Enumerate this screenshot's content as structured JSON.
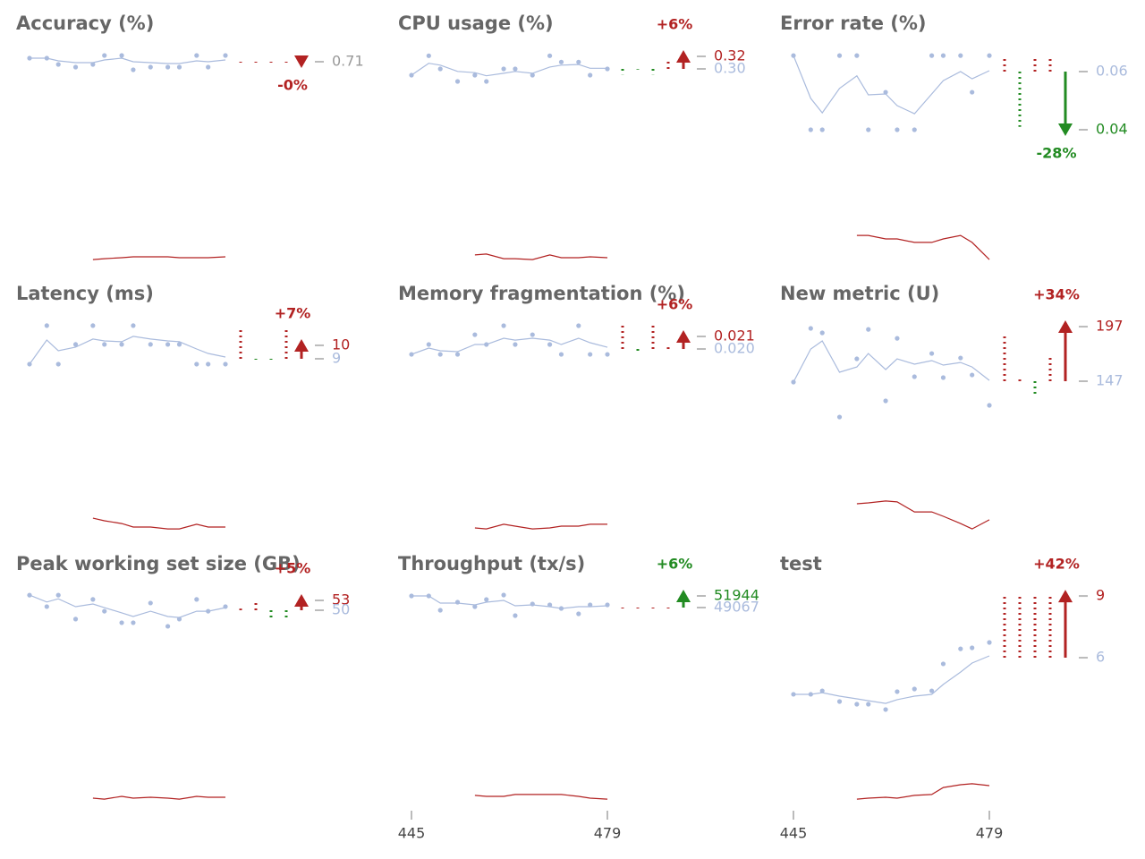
{
  "chart_data": [
    {
      "type": "line",
      "title": "Accuracy (%)",
      "x": [
        445,
        448,
        450,
        453,
        456,
        458,
        461,
        463,
        466,
        469,
        471,
        474,
        476,
        479
      ],
      "series": [
        {
          "color": "#aabbdd",
          "style": "points",
          "values": [
            0.714,
            0.714,
            0.707,
            0.704,
            0.707,
            0.717,
            0.717,
            0.701,
            0.704,
            0.704,
            0.704,
            0.717,
            0.704,
            0.717
          ]
        },
        {
          "color": "#aabbdd",
          "style": "line",
          "values": [
            0.714,
            0.714,
            0.711,
            0.709,
            0.709,
            0.712,
            0.714,
            0.71,
            0.709,
            0.708,
            0.708,
            0.711,
            0.71,
            0.712
          ]
        },
        {
          "color": "#b22222",
          "style": "line",
          "axis": "y2",
          "values": [
            null,
            null,
            null,
            null,
            0.038,
            0.042,
            0.046,
            0.05,
            0.05,
            0.05,
            0.046,
            0.046,
            0.046,
            0.05
          ]
        }
      ],
      "ylim": [
        0.479,
        0.739
      ],
      "y2lim": [
        0,
        1
      ],
      "yticks": [
        0.71
      ],
      "ytick_colors": [
        "#999999"
      ],
      "steps": [
        0.709,
        0.709,
        0.709,
        0.709
      ],
      "step_colors": [
        "#b22222",
        "#b22222",
        "#b22222",
        "#b22222"
      ],
      "marker_direction": "down",
      "marker_color": "#b22222",
      "change_label": "-0%",
      "change_color": "#b22222"
    },
    {
      "type": "line",
      "title": "CPU usage (%)",
      "x": [
        445,
        448,
        450,
        453,
        456,
        458,
        461,
        463,
        466,
        469,
        471,
        474,
        476,
        479
      ],
      "series": [
        {
          "color": "#aabbdd",
          "style": "points",
          "values": [
            0.29,
            0.321,
            0.3,
            0.28,
            0.29,
            0.28,
            0.3,
            0.3,
            0.29,
            0.321,
            0.311,
            0.311,
            0.29,
            0.3
          ]
        },
        {
          "color": "#aabbdd",
          "style": "line",
          "values": [
            0.29,
            0.309,
            0.306,
            0.296,
            0.294,
            0.289,
            0.293,
            0.296,
            0.293,
            0.303,
            0.306,
            0.307,
            0.301,
            0.301
          ]
        },
        {
          "color": "#b22222",
          "style": "line",
          "axis": "y2",
          "values": [
            null,
            null,
            null,
            null,
            0.058,
            0.062,
            0.042,
            0.042,
            0.038,
            0.058,
            0.046,
            0.046,
            0.05,
            0.046
          ]
        }
      ],
      "ylim": [
        -0.0187,
        0.3529
      ],
      "y2lim": [
        0,
        1
      ],
      "yticks": [
        0.32,
        {
          "value": 0.3,
          "label": "0.30"
        }
      ],
      "ytick_colors": [
        "#b22222",
        "#aabbdd"
      ],
      "steps": [
        0.291,
        0.299,
        0.291,
        0.315
      ],
      "step_colors": [
        "#228b22",
        "#228b22",
        "#228b22",
        "#b22222"
      ],
      "marker_direction": "up",
      "marker_color": "#b22222",
      "change_label": "+6%",
      "change_color": "#b22222"
    },
    {
      "type": "line",
      "title": "Error rate (%)",
      "x": [
        445,
        448,
        450,
        453,
        456,
        458,
        461,
        463,
        466,
        469,
        471,
        474,
        476,
        479
      ],
      "series": [
        {
          "color": "#aabbdd",
          "style": "points",
          "values": [
            0.0655,
            0.04,
            0.04,
            0.0655,
            0.0655,
            0.04,
            0.0529,
            0.04,
            0.04,
            0.0655,
            0.0655,
            0.0655,
            0.0529,
            0.0655
          ]
        },
        {
          "color": "#aabbdd",
          "style": "line",
          "values": [
            0.0655,
            0.0508,
            0.0458,
            0.0542,
            0.0585,
            0.052,
            0.0523,
            0.0483,
            0.0455,
            0.0523,
            0.0569,
            0.06,
            0.0575,
            0.0603
          ]
        },
        {
          "color": "#b22222",
          "style": "line",
          "axis": "y2",
          "values": [
            null,
            null,
            null,
            null,
            0.142,
            0.142,
            0.127,
            0.127,
            0.112,
            0.112,
            0.127,
            0.142,
            0.112,
            0.038
          ]
        }
      ],
      "ylim": [
        -0.0077,
        0.0723
      ],
      "y2lim": [
        0,
        1
      ],
      "yticks": [
        0.04,
        0.06
      ],
      "ytick_colors": [
        "#228b22",
        "#aabbdd"
      ],
      "steps": [
        0.0655,
        0.041,
        0.0655,
        0.0655
      ],
      "step_colors": [
        "#b22222",
        "#228b22",
        "#b22222",
        "#b22222"
      ],
      "marker_direction": "down",
      "marker_color": "#228b22",
      "change_label": "-28%",
      "change_color": "#228b22"
    },
    {
      "type": "line",
      "title": "Latency (ms)",
      "x": [
        445,
        448,
        450,
        453,
        456,
        458,
        461,
        463,
        466,
        469,
        471,
        474,
        476,
        479
      ],
      "series": [
        {
          "color": "#aabbdd",
          "style": "points",
          "values": [
            8.6,
            11.47,
            8.6,
            10.07,
            11.47,
            10.07,
            10.07,
            11.47,
            10.07,
            10.07,
            10.07,
            8.6,
            8.6,
            8.6
          ]
        },
        {
          "color": "#aabbdd",
          "style": "line",
          "values": [
            8.6,
            10.4,
            9.6,
            9.87,
            10.47,
            10.33,
            10.27,
            10.67,
            10.47,
            10.33,
            10.27,
            9.73,
            9.4,
            9.13
          ]
        },
        {
          "color": "#b22222",
          "style": "line",
          "axis": "y2",
          "values": [
            null,
            null,
            null,
            null,
            0.088,
            0.077,
            0.065,
            0.05,
            0.05,
            0.042,
            0.042,
            0.062,
            0.05,
            0.05
          ]
        }
      ],
      "ylim": [
        -4.4,
        12.93
      ],
      "y2lim": [
        0,
        1
      ],
      "yticks": [
        10,
        9
      ],
      "ytick_colors": [
        "#b22222",
        "#aabbdd"
      ],
      "steps": [
        11.2,
        8.93,
        8.93,
        11.2
      ],
      "step_colors": [
        "#b22222",
        "#228b22",
        "#228b22",
        "#b22222"
      ],
      "marker_direction": "up",
      "marker_color": "#b22222",
      "change_label": "+7%",
      "change_color": "#b22222"
    },
    {
      "type": "line",
      "title": "Memory fragmentation (%)",
      "x": [
        445,
        448,
        450,
        453,
        456,
        458,
        461,
        463,
        466,
        469,
        471,
        474,
        476,
        479
      ],
      "series": [
        {
          "color": "#aabbdd",
          "style": "points",
          "values": [
            0.01957,
            0.02036,
            0.01957,
            0.01957,
            0.02114,
            0.02036,
            0.02186,
            0.02036,
            0.02114,
            0.02036,
            0.01957,
            0.02186,
            0.01957,
            0.01957
          ]
        },
        {
          "color": "#aabbdd",
          "style": "line",
          "values": [
            0.01957,
            0.02007,
            0.01986,
            0.01979,
            0.02036,
            0.02036,
            0.02086,
            0.02071,
            0.02086,
            0.02071,
            0.02036,
            0.02086,
            0.0205,
            0.02014
          ]
        },
        {
          "color": "#b22222",
          "style": "line",
          "axis": "y2",
          "values": [
            null,
            null,
            null,
            null,
            0.046,
            0.042,
            0.062,
            0.054,
            0.042,
            0.046,
            0.054,
            0.054,
            0.062,
            0.062
          ]
        }
      ],
      "ylim": [
        0.00486,
        0.02343
      ],
      "y2lim": [
        0,
        1
      ],
      "yticks": [
        0.021,
        {
          "value": 0.02,
          "label": "0.020"
        }
      ],
      "ytick_colors": [
        "#b22222",
        "#aabbdd"
      ],
      "steps": [
        0.02186,
        0.01957,
        0.02186,
        0.02014
      ],
      "step_colors": [
        "#b22222",
        "#228b22",
        "#b22222",
        "#b22222"
      ],
      "marker_direction": "up",
      "marker_color": "#b22222",
      "change_label": "+6%",
      "change_color": "#b22222"
    },
    {
      "type": "line",
      "title": "New metric (U)",
      "x": [
        445,
        448,
        450,
        453,
        456,
        458,
        461,
        463,
        466,
        469,
        471,
        474,
        476,
        479
      ],
      "series": [
        {
          "color": "#aabbdd",
          "style": "points",
          "values": [
            146.2,
            195.4,
            191.3,
            114.2,
            167.5,
            194.5,
            129.0,
            186.3,
            151.1,
            172.4,
            150.3,
            168.3,
            152.7,
            124.9
          ]
        },
        {
          "color": "#aabbdd",
          "style": "line",
          "values": [
            146.2,
            176.5,
            183.9,
            155.2,
            160.1,
            172.4,
            157.7,
            167.5,
            162.6,
            165.9,
            161.8,
            164.2,
            160.1,
            147.8
          ]
        },
        {
          "color": "#b22222",
          "style": "line",
          "axis": "y2",
          "values": [
            null,
            null,
            null,
            null,
            0.15,
            0.154,
            0.162,
            0.158,
            0.115,
            0.115,
            0.096,
            0.065,
            0.042,
            0.081
          ]
        }
      ],
      "ylim": [
        2.73,
        215.9
      ],
      "y2lim": [
        0,
        1
      ],
      "yticks": [
        197,
        147
      ],
      "ytick_colors": [
        "#b22222",
        "#aabbdd"
      ],
      "steps": [
        191.3,
        148.6,
        133.1,
        168.3
      ],
      "step_colors": [
        "#b22222",
        "#b22222",
        "#228b22",
        "#b22222"
      ],
      "marker_direction": "up",
      "marker_color": "#b22222",
      "change_label": "+34%",
      "change_color": "#b22222"
    },
    {
      "type": "line",
      "title": "Peak working set size (GB)",
      "x": [
        445,
        448,
        450,
        453,
        456,
        458,
        461,
        463,
        466,
        469,
        471,
        474,
        476,
        479
      ],
      "series": [
        {
          "color": "#aabbdd",
          "style": "points",
          "values": [
            54.6,
            51.1,
            54.6,
            47.3,
            53.3,
            49.7,
            46.2,
            46.2,
            52.2,
            45.1,
            47.3,
            53.3,
            49.7,
            51.1
          ]
        },
        {
          "color": "#aabbdd",
          "style": "line",
          "values": [
            54.6,
            52.5,
            53.5,
            51.1,
            51.9,
            50.8,
            49.2,
            48.1,
            49.7,
            48.1,
            47.8,
            49.7,
            49.7,
            50.8
          ]
        },
        {
          "color": "#b22222",
          "style": "line",
          "axis": "y2",
          "values": [
            null,
            null,
            null,
            null,
            0.046,
            0.042,
            0.054,
            0.046,
            0.05,
            0.046,
            0.042,
            0.054,
            0.05,
            0.05
          ]
        }
      ],
      "ylim": [
        -10.54,
        60.36
      ],
      "y2lim": [
        0,
        1
      ],
      "yticks": [
        53,
        50
      ],
      "ytick_colors": [
        "#b22222",
        "#aabbdd"
      ],
      "steps": [
        50.5,
        52.7,
        47.3,
        47.3
      ],
      "step_colors": [
        "#b22222",
        "#b22222",
        "#228b22",
        "#228b22"
      ],
      "marker_direction": "up",
      "marker_color": "#b22222",
      "change_label": "+5%",
      "change_color": "#b22222"
    },
    {
      "type": "line",
      "title": "Throughput (tx/s)",
      "x": [
        445,
        448,
        450,
        453,
        456,
        458,
        461,
        463,
        466,
        469,
        471,
        474,
        476,
        479
      ],
      "series": [
        {
          "color": "#aabbdd",
          "style": "points",
          "values": [
            51944,
            51944,
            48403,
            50395,
            49288,
            51059,
            52165,
            47075,
            49952,
            49731,
            48846,
            47518,
            49731,
            49731
          ]
        },
        {
          "color": "#aabbdd",
          "style": "line",
          "values": [
            51944,
            51944,
            50174,
            50174,
            49731,
            50395,
            50837,
            49510,
            49731,
            49288,
            48846,
            49288,
            49288,
            49510
          ]
        },
        {
          "color": "#b22222",
          "style": "line",
          "axis": "y2",
          "values": [
            null,
            null,
            null,
            null,
            0.058,
            0.054,
            0.054,
            0.062,
            0.062,
            0.062,
            0.062,
            0.054,
            0.046,
            0.042
          ]
        }
      ],
      "ylim": [
        -725,
        56813
      ],
      "y2lim": [
        0,
        1
      ],
      "yticks": [
        51944,
        49067
      ],
      "ytick_colors": [
        "#228b22",
        "#aabbdd"
      ],
      "xticks": [
        445,
        479
      ],
      "steps": [
        48846,
        48846,
        48846,
        48846
      ],
      "step_colors": [
        "#b22222",
        "#b22222",
        "#b22222",
        "#b22222"
      ],
      "marker_direction": "up",
      "marker_color": "#228b22",
      "change_label": "+6%",
      "change_color": "#228b22"
    },
    {
      "type": "line",
      "title": "test",
      "x": [
        445,
        448,
        450,
        453,
        456,
        458,
        461,
        463,
        466,
        469,
        471,
        474,
        476,
        479
      ],
      "series": [
        {
          "color": "#aabbdd",
          "style": "points",
          "values": [
            4.22,
            4.22,
            4.39,
            3.87,
            3.74,
            3.74,
            3.48,
            4.35,
            4.48,
            4.39,
            5.7,
            6.43,
            6.48,
            6.74
          ]
        },
        {
          "color": "#aabbdd",
          "style": "line",
          "values": [
            4.22,
            4.22,
            4.3,
            4.13,
            4.0,
            3.91,
            3.78,
            3.96,
            4.13,
            4.22,
            4.7,
            5.3,
            5.74,
            6.09
          ]
        },
        {
          "color": "#b22222",
          "style": "line",
          "axis": "y2",
          "values": [
            null,
            null,
            null,
            null,
            0.042,
            0.046,
            0.05,
            0.046,
            0.058,
            0.062,
            0.092,
            0.104,
            0.108,
            0.1
          ]
        }
      ],
      "ylim": [
        -1.35,
        9.96
      ],
      "y2lim": [
        0,
        1
      ],
      "yticks": [
        9,
        6
      ],
      "ytick_colors": [
        "#b22222",
        "#aabbdd"
      ],
      "xticks": [
        445,
        479
      ],
      "steps": [
        9,
        9,
        9,
        9
      ],
      "step_colors": [
        "#b22222",
        "#b22222",
        "#b22222",
        "#b22222"
      ],
      "marker_direction": "up",
      "marker_color": "#b22222",
      "change_label": "+42%",
      "change_color": "#b22222"
    }
  ]
}
